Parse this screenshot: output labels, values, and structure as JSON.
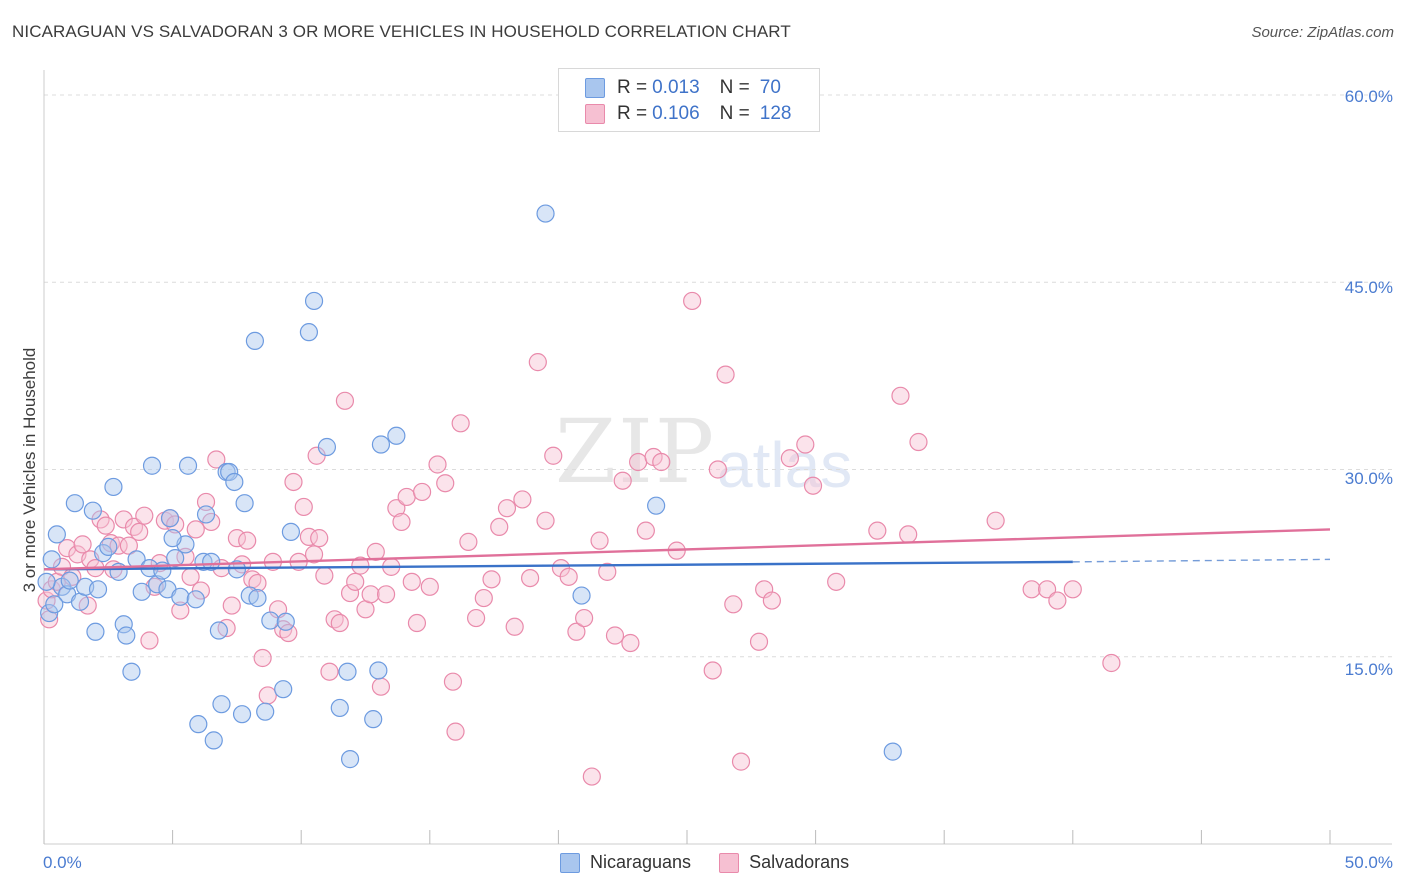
{
  "title": "NICARAGUAN VS SALVADORAN 3 OR MORE VEHICLES IN HOUSEHOLD CORRELATION CHART",
  "source": "Source: ZipAtlas.com",
  "watermark": {
    "part1": "ZIP",
    "part2": "atlas"
  },
  "legend": {
    "rows": [
      {
        "r_label": "R =",
        "r_value": "0.013",
        "n_label": "N =",
        "n_value": "70"
      },
      {
        "r_label": "R =",
        "r_value": "0.106",
        "n_label": "N =",
        "n_value": "128"
      }
    ]
  },
  "bottom_legend": {
    "items": [
      "Nicaraguans",
      "Salvadorans"
    ]
  },
  "colors": {
    "blue_fill": "#a9c6ee",
    "blue_stroke": "#6d9be0",
    "blue_line": "#3a72c8",
    "pink_fill": "#f6c0d2",
    "pink_stroke": "#e98aab",
    "pink_line": "#e0709a",
    "grid": "#dcdcdc",
    "tick_text": "#4a7bd0"
  },
  "chart_data": {
    "type": "scatter",
    "title": "NICARAGUAN VS SALVADORAN 3 OR MORE VEHICLES IN HOUSEHOLD CORRELATION CHART",
    "xlabel": "",
    "ylabel": "3 or more Vehicles in Household",
    "xlim": [
      0,
      50
    ],
    "ylim": [
      0,
      62
    ],
    "x_tick_labels": [
      "0.0%",
      "50.0%"
    ],
    "y_ticks": [
      15,
      30,
      45,
      60
    ],
    "y_tick_labels": [
      "15.0%",
      "30.0%",
      "45.0%",
      "60.0%"
    ],
    "grid": true,
    "series": [
      {
        "name": "Nicaraguans",
        "r": 0.013,
        "n": 70,
        "trend": {
          "x0": 0,
          "y0": 22.0,
          "x1": 40,
          "y1": 22.6,
          "dashed_to_x": 50,
          "dashed_to_y": 22.8
        },
        "points": [
          [
            0.2,
            18.5
          ],
          [
            0.3,
            22.8
          ],
          [
            0.5,
            24.8
          ],
          [
            0.7,
            20.6
          ],
          [
            0.9,
            20.0
          ],
          [
            1.0,
            21.1
          ],
          [
            1.2,
            27.3
          ],
          [
            1.4,
            19.4
          ],
          [
            1.6,
            20.6
          ],
          [
            1.9,
            26.7
          ],
          [
            2.1,
            20.4
          ],
          [
            2.3,
            23.3
          ],
          [
            2.5,
            23.8
          ],
          [
            2.7,
            28.6
          ],
          [
            2.9,
            21.8
          ],
          [
            3.1,
            17.6
          ],
          [
            3.2,
            16.7
          ],
          [
            3.4,
            13.8
          ],
          [
            3.6,
            22.8
          ],
          [
            3.8,
            20.2
          ],
          [
            4.1,
            22.1
          ],
          [
            4.2,
            30.3
          ],
          [
            4.4,
            20.8
          ],
          [
            4.6,
            21.9
          ],
          [
            4.8,
            20.4
          ],
          [
            4.9,
            26.1
          ],
          [
            5.1,
            22.9
          ],
          [
            5.3,
            19.8
          ],
          [
            5.5,
            24.0
          ],
          [
            5.6,
            30.3
          ],
          [
            5.9,
            19.6
          ],
          [
            6.0,
            9.6
          ],
          [
            6.2,
            22.6
          ],
          [
            6.3,
            26.4
          ],
          [
            6.5,
            22.6
          ],
          [
            6.6,
            8.3
          ],
          [
            6.8,
            17.1
          ],
          [
            6.9,
            11.2
          ],
          [
            7.1,
            29.8
          ],
          [
            7.2,
            29.8
          ],
          [
            7.4,
            29.0
          ],
          [
            7.5,
            22.0
          ],
          [
            7.7,
            10.4
          ],
          [
            7.8,
            27.3
          ],
          [
            8.0,
            19.9
          ],
          [
            8.2,
            40.3
          ],
          [
            8.3,
            19.7
          ],
          [
            8.6,
            10.6
          ],
          [
            8.8,
            17.9
          ],
          [
            9.3,
            12.4
          ],
          [
            9.4,
            17.8
          ],
          [
            9.6,
            25.0
          ],
          [
            10.3,
            41.0
          ],
          [
            10.5,
            43.5
          ],
          [
            11.0,
            31.8
          ],
          [
            11.5,
            10.9
          ],
          [
            11.8,
            13.8
          ],
          [
            11.9,
            6.8
          ],
          [
            12.8,
            10.0
          ],
          [
            13.0,
            13.9
          ],
          [
            13.1,
            32.0
          ],
          [
            13.7,
            32.7
          ],
          [
            19.5,
            50.5
          ],
          [
            20.9,
            19.9
          ],
          [
            33.0,
            7.4
          ],
          [
            23.8,
            27.1
          ],
          [
            0.1,
            21.0
          ],
          [
            0.4,
            19.2
          ],
          [
            2.0,
            17.0
          ],
          [
            5.0,
            24.5
          ]
        ]
      },
      {
        "name": "Salvadorans",
        "r": 0.106,
        "n": 128,
        "trend": {
          "x0": 0,
          "y0": 22.0,
          "x1": 50,
          "y1": 25.2
        },
        "points": [
          [
            0.1,
            19.5
          ],
          [
            0.2,
            18.0
          ],
          [
            0.3,
            20.4
          ],
          [
            0.5,
            21.0
          ],
          [
            0.7,
            22.2
          ],
          [
            0.9,
            23.7
          ],
          [
            1.1,
            21.4
          ],
          [
            1.3,
            23.2
          ],
          [
            1.5,
            24.0
          ],
          [
            1.7,
            19.1
          ],
          [
            1.8,
            22.8
          ],
          [
            2.0,
            22.1
          ],
          [
            2.2,
            26.0
          ],
          [
            2.4,
            25.5
          ],
          [
            2.6,
            24.1
          ],
          [
            2.7,
            22.0
          ],
          [
            2.9,
            23.9
          ],
          [
            3.1,
            26.0
          ],
          [
            3.3,
            23.9
          ],
          [
            3.5,
            25.4
          ],
          [
            3.7,
            25.0
          ],
          [
            3.9,
            26.3
          ],
          [
            4.1,
            16.3
          ],
          [
            4.3,
            20.6
          ],
          [
            4.5,
            22.5
          ],
          [
            4.7,
            25.9
          ],
          [
            4.9,
            26.1
          ],
          [
            5.1,
            25.6
          ],
          [
            5.3,
            18.7
          ],
          [
            5.5,
            23.0
          ],
          [
            5.7,
            21.4
          ],
          [
            5.9,
            25.2
          ],
          [
            6.1,
            20.3
          ],
          [
            6.3,
            27.4
          ],
          [
            6.5,
            25.8
          ],
          [
            6.7,
            30.8
          ],
          [
            6.9,
            22.1
          ],
          [
            7.1,
            17.3
          ],
          [
            7.3,
            19.1
          ],
          [
            7.5,
            24.5
          ],
          [
            7.7,
            22.4
          ],
          [
            7.9,
            24.3
          ],
          [
            8.1,
            21.2
          ],
          [
            8.3,
            20.9
          ],
          [
            8.5,
            14.9
          ],
          [
            8.7,
            11.9
          ],
          [
            8.9,
            22.6
          ],
          [
            9.1,
            18.8
          ],
          [
            9.3,
            17.2
          ],
          [
            9.5,
            16.9
          ],
          [
            9.7,
            29.0
          ],
          [
            9.9,
            22.6
          ],
          [
            10.1,
            27.0
          ],
          [
            10.3,
            24.6
          ],
          [
            10.5,
            23.2
          ],
          [
            10.7,
            24.5
          ],
          [
            10.9,
            21.5
          ],
          [
            11.1,
            13.8
          ],
          [
            11.3,
            18.0
          ],
          [
            11.5,
            17.7
          ],
          [
            11.7,
            35.5
          ],
          [
            11.9,
            20.1
          ],
          [
            12.1,
            21.0
          ],
          [
            12.3,
            22.3
          ],
          [
            12.5,
            18.8
          ],
          [
            12.7,
            20.0
          ],
          [
            12.9,
            23.4
          ],
          [
            13.1,
            12.6
          ],
          [
            13.3,
            20.0
          ],
          [
            13.5,
            22.2
          ],
          [
            13.7,
            26.9
          ],
          [
            13.9,
            25.8
          ],
          [
            14.1,
            27.8
          ],
          [
            14.3,
            21.0
          ],
          [
            14.5,
            17.7
          ],
          [
            14.7,
            28.2
          ],
          [
            15.0,
            20.6
          ],
          [
            15.3,
            30.4
          ],
          [
            15.6,
            28.9
          ],
          [
            15.9,
            13.0
          ],
          [
            16.2,
            33.7
          ],
          [
            16.5,
            24.2
          ],
          [
            16.8,
            18.1
          ],
          [
            17.1,
            19.7
          ],
          [
            17.4,
            21.2
          ],
          [
            17.7,
            25.4
          ],
          [
            18.0,
            26.9
          ],
          [
            18.3,
            17.4
          ],
          [
            18.6,
            27.6
          ],
          [
            18.9,
            21.3
          ],
          [
            19.2,
            38.6
          ],
          [
            19.5,
            25.9
          ],
          [
            19.8,
            31.1
          ],
          [
            20.1,
            22.1
          ],
          [
            20.4,
            21.4
          ],
          [
            20.7,
            17.0
          ],
          [
            21.0,
            18.1
          ],
          [
            21.3,
            5.4
          ],
          [
            21.6,
            24.3
          ],
          [
            21.9,
            21.8
          ],
          [
            22.2,
            16.7
          ],
          [
            22.5,
            29.1
          ],
          [
            22.8,
            16.1
          ],
          [
            23.1,
            30.6
          ],
          [
            23.4,
            25.1
          ],
          [
            23.7,
            31.0
          ],
          [
            24.0,
            30.6
          ],
          [
            24.6,
            23.5
          ],
          [
            25.2,
            43.5
          ],
          [
            26.0,
            13.9
          ],
          [
            26.2,
            30.0
          ],
          [
            26.5,
            37.6
          ],
          [
            26.8,
            19.2
          ],
          [
            27.1,
            6.6
          ],
          [
            27.8,
            16.2
          ],
          [
            28.0,
            20.4
          ],
          [
            28.3,
            19.5
          ],
          [
            29.0,
            30.9
          ],
          [
            29.6,
            32.0
          ],
          [
            29.9,
            28.7
          ],
          [
            30.8,
            21.0
          ],
          [
            32.4,
            25.1
          ],
          [
            33.3,
            35.9
          ],
          [
            33.6,
            24.8
          ],
          [
            34.0,
            32.2
          ],
          [
            37.0,
            25.9
          ],
          [
            38.4,
            20.4
          ],
          [
            39.0,
            20.4
          ],
          [
            39.4,
            19.5
          ],
          [
            41.5,
            14.5
          ],
          [
            40.0,
            20.4
          ],
          [
            16.0,
            9.0
          ],
          [
            10.6,
            31.1
          ]
        ]
      }
    ]
  }
}
